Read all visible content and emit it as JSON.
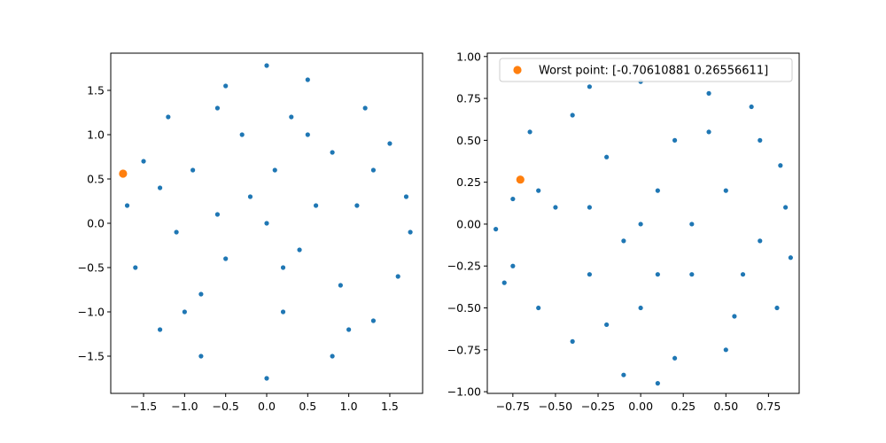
{
  "chart_data": [
    {
      "type": "scatter",
      "xlim": [
        -1.9,
        1.9
      ],
      "ylim": [
        -1.92,
        1.92
      ],
      "xticks": [
        -1.5,
        -1.0,
        -0.5,
        0.0,
        0.5,
        1.0,
        1.5
      ],
      "yticks": [
        -1.5,
        -1.0,
        -0.5,
        0.0,
        0.5,
        1.0,
        1.5
      ],
      "xtick_labels": [
        "−1.5",
        "−1.0",
        "−0.5",
        "0.0",
        "0.5",
        "1.0",
        "1.5"
      ],
      "ytick_labels": [
        "−1.5",
        "−1.0",
        "−0.5",
        "0.0",
        "0.5",
        "1.0",
        "1.5"
      ],
      "grid": false,
      "series": [
        {
          "color": "#1f77b4",
          "shape": "disk",
          "points": [
            [
              0,
              1.78
            ],
            [
              0.5,
              1.62
            ],
            [
              -0.5,
              1.55
            ],
            [
              1.2,
              1.3
            ],
            [
              -1.2,
              1.2
            ],
            [
              1.5,
              0.9
            ],
            [
              -1.5,
              0.7
            ],
            [
              1.7,
              0.3
            ],
            [
              1.75,
              -0.1
            ],
            [
              -1.7,
              0.2
            ],
            [
              -1.6,
              -0.5
            ],
            [
              1.6,
              -0.6
            ],
            [
              1.3,
              -1.1
            ],
            [
              -1.3,
              -1.2
            ],
            [
              0.8,
              -1.5
            ],
            [
              -0.8,
              -1.5
            ],
            [
              0,
              -1.75
            ],
            [
              0.3,
              1.2
            ],
            [
              -0.3,
              1.0
            ],
            [
              0.8,
              0.8
            ],
            [
              -0.9,
              0.6
            ],
            [
              1.1,
              0.2
            ],
            [
              -1.1,
              -0.1
            ],
            [
              0.9,
              -0.7
            ],
            [
              -0.8,
              -0.8
            ],
            [
              0.2,
              -1.0
            ],
            [
              -0.2,
              0.3
            ],
            [
              0.4,
              -0.3
            ],
            [
              -0.5,
              -0.4
            ],
            [
              0.1,
              0.6
            ],
            [
              0.6,
              0.2
            ],
            [
              -0.6,
              0.1
            ],
            [
              0.2,
              -0.5
            ],
            [
              1.3,
              0.6
            ],
            [
              -1.3,
              0.4
            ],
            [
              0.5,
              1.0
            ],
            [
              -0.6,
              1.3
            ],
            [
              1.0,
              -1.2
            ],
            [
              -1.0,
              -1.0
            ],
            [
              0.0,
              0.0
            ]
          ]
        },
        {
          "color": "#ff7f0e",
          "shape": "disk",
          "points": [
            [
              -1.75,
              0.56
            ]
          ]
        }
      ]
    },
    {
      "type": "scatter",
      "xlim": [
        -0.9,
        0.93
      ],
      "ylim": [
        -1.01,
        1.02
      ],
      "xticks": [
        -0.75,
        -0.5,
        -0.25,
        0.0,
        0.25,
        0.5,
        0.75
      ],
      "yticks": [
        -1.0,
        -0.75,
        -0.5,
        -0.25,
        0.0,
        0.25,
        0.5,
        0.75,
        1.0
      ],
      "xtick_labels": [
        "−0.75",
        "−0.50",
        "−0.25",
        "0.00",
        "0.25",
        "0.50",
        "0.75"
      ],
      "ytick_labels": [
        "−1.00",
        "−0.75",
        "−0.50",
        "−0.25",
        "0.00",
        "0.25",
        "0.50",
        "0.75",
        "1.00"
      ],
      "grid": false,
      "legend": {
        "placement": "upper-right",
        "entries": [
          {
            "label": "Worst point: [-0.70610881  0.26556611]",
            "color": "#ff7f0e"
          }
        ]
      },
      "series": [
        {
          "color": "#1f77b4",
          "shape": "disk",
          "points": [
            [
              0,
              0.85
            ],
            [
              0.4,
              0.78
            ],
            [
              -0.3,
              0.82
            ],
            [
              0.7,
              0.5
            ],
            [
              -0.65,
              0.55
            ],
            [
              0.85,
              0.1
            ],
            [
              -0.85,
              -0.03
            ],
            [
              0.88,
              -0.2
            ],
            [
              0.8,
              -0.5
            ],
            [
              -0.75,
              -0.25
            ],
            [
              -0.6,
              -0.5
            ],
            [
              0.5,
              -0.75
            ],
            [
              -0.4,
              -0.7
            ],
            [
              0.1,
              -0.95
            ],
            [
              -0.1,
              -0.9
            ],
            [
              0.2,
              0.5
            ],
            [
              -0.2,
              0.4
            ],
            [
              0.5,
              0.2
            ],
            [
              -0.5,
              0.1
            ],
            [
              0.3,
              -0.3
            ],
            [
              -0.3,
              -0.3
            ],
            [
              0.0,
              -0.5
            ],
            [
              0.6,
              -0.3
            ],
            [
              -0.6,
              0.2
            ],
            [
              0.7,
              -0.1
            ],
            [
              0.1,
              0.2
            ],
            [
              -0.1,
              -0.1
            ],
            [
              0.4,
              0.55
            ],
            [
              -0.4,
              0.65
            ],
            [
              0.2,
              -0.8
            ],
            [
              -0.2,
              -0.6
            ],
            [
              0.65,
              0.7
            ],
            [
              -0.75,
              0.15
            ],
            [
              0.82,
              0.35
            ],
            [
              -0.8,
              -0.35
            ],
            [
              0.55,
              -0.55
            ],
            [
              0.0,
              0.0
            ],
            [
              0.3,
              0.0
            ],
            [
              -0.3,
              0.1
            ],
            [
              0.1,
              -0.3
            ]
          ]
        },
        {
          "color": "#ff7f0e",
          "shape": "disk",
          "points": [
            [
              -0.70610881,
              0.26556611
            ]
          ]
        }
      ]
    }
  ]
}
